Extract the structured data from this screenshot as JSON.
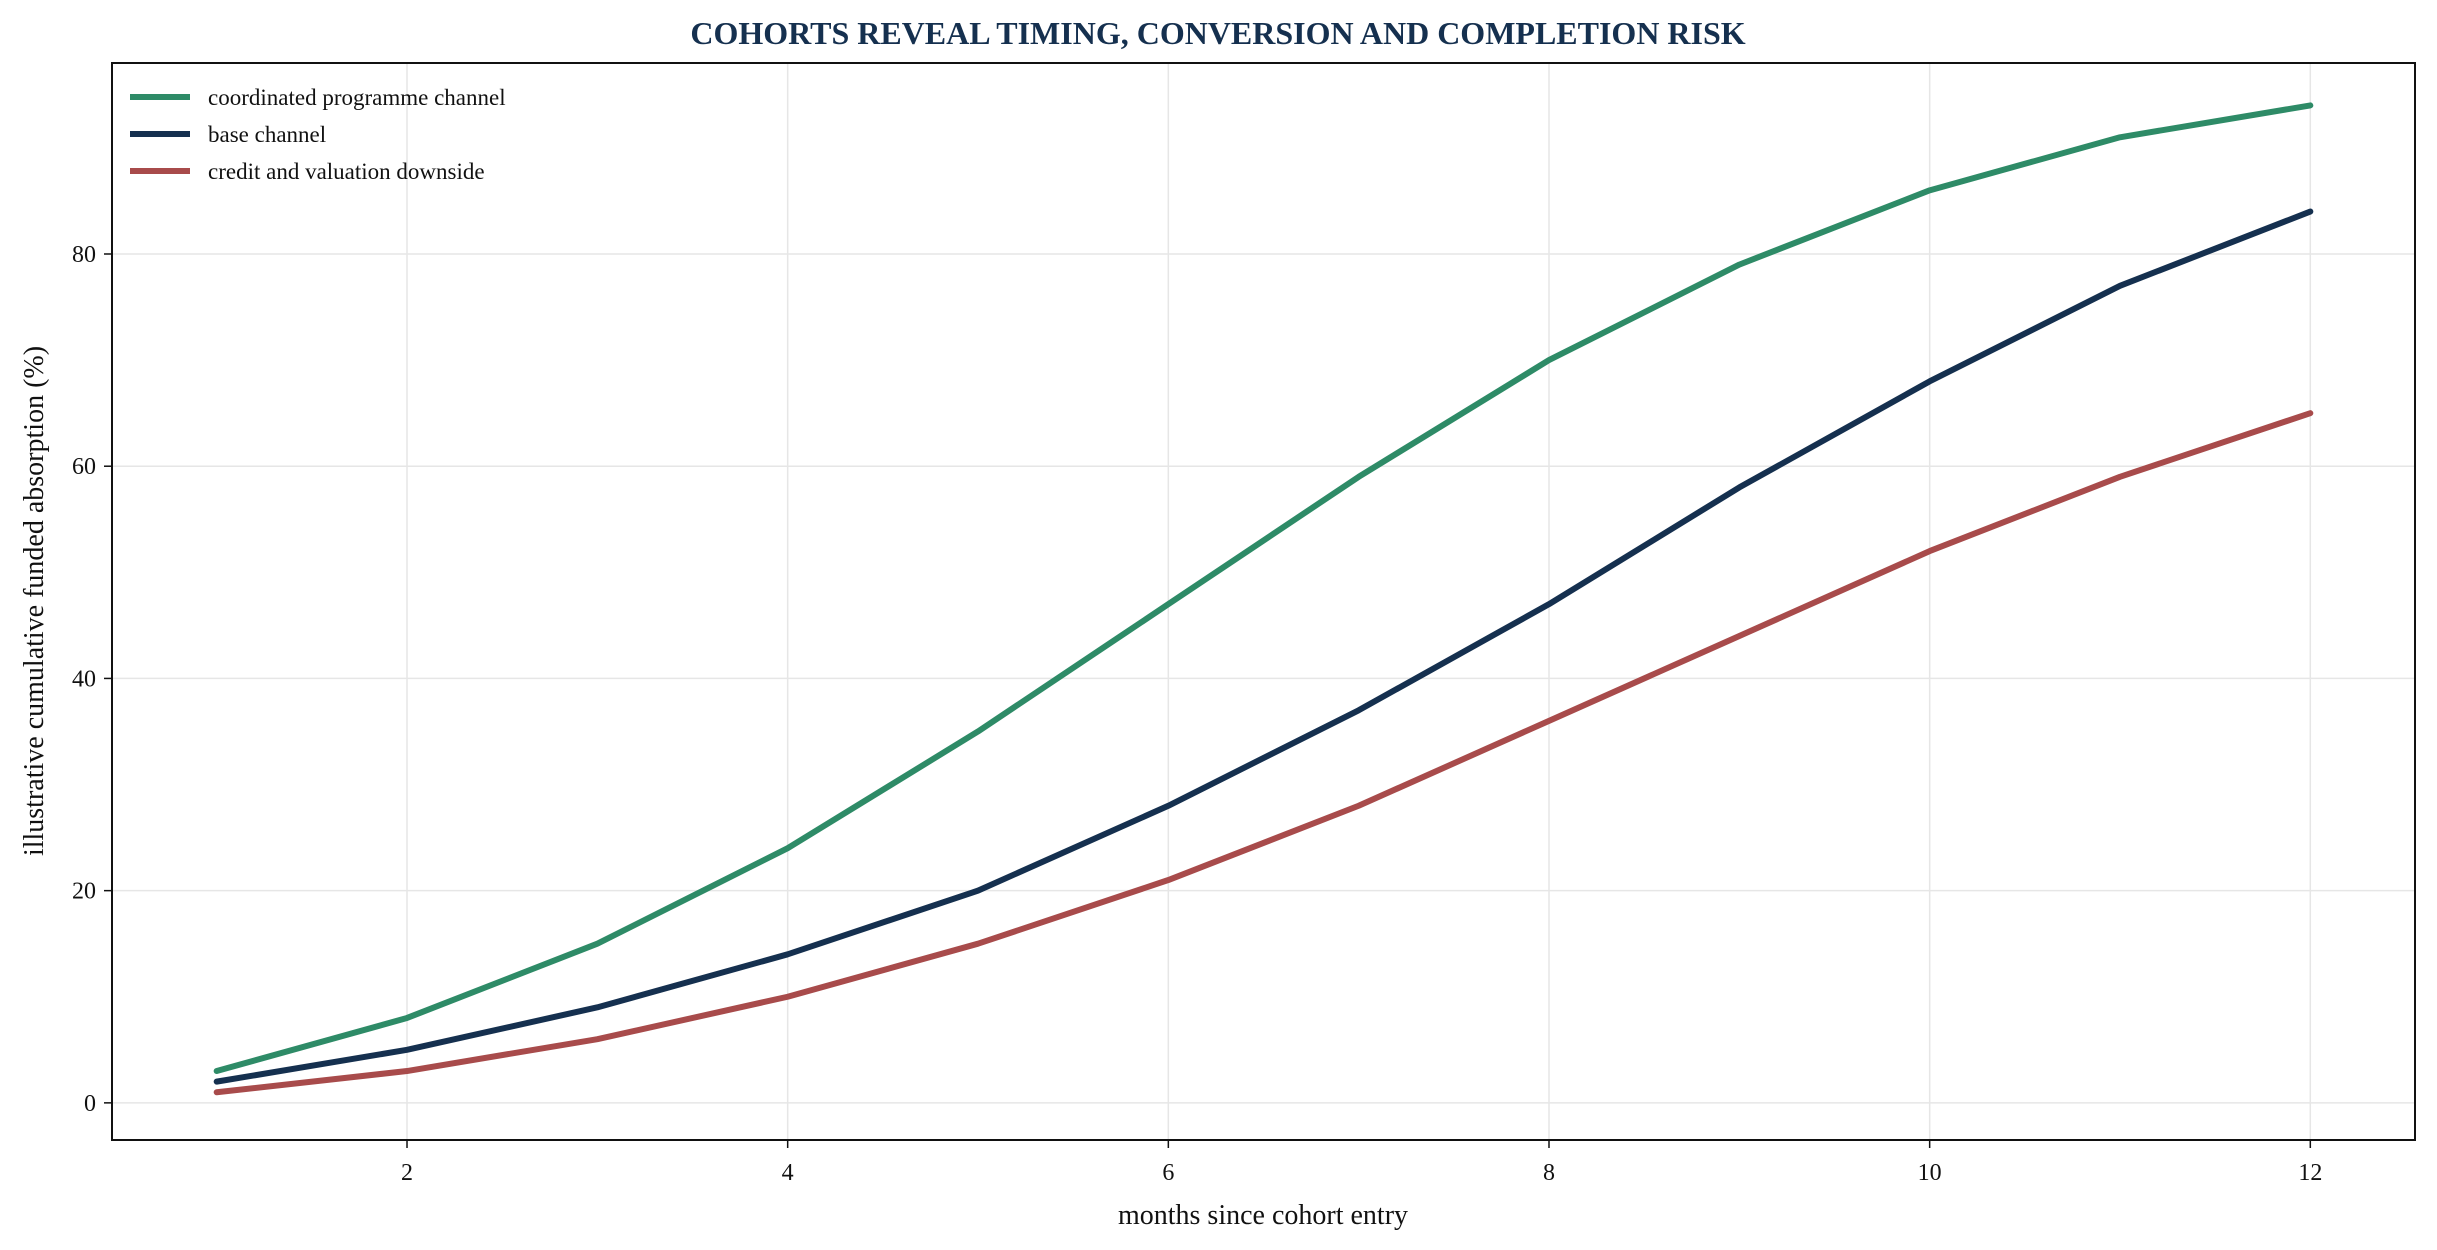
{
  "chart_data": {
    "type": "line",
    "title": "COHORTS REVEAL TIMING, CONVERSION AND COMPLETION RISK",
    "xlabel": "months since cohort entry",
    "ylabel": "illustrative cumulative funded absorption (%)",
    "x": [
      1,
      2,
      3,
      4,
      5,
      6,
      7,
      8,
      9,
      10,
      11,
      12
    ],
    "xlim": [
      0.45,
      12.55
    ],
    "ylim": [
      -3.5,
      98
    ],
    "xticks": [
      2,
      4,
      6,
      8,
      10,
      12
    ],
    "yticks": [
      0,
      20,
      40,
      60,
      80
    ],
    "grid": true,
    "legend": "top-left",
    "series": [
      {
        "name": "coordinated programme channel",
        "color": "#2e8b67",
        "values": [
          3,
          8,
          15,
          24,
          35,
          47,
          59,
          70,
          79,
          86,
          91,
          94
        ]
      },
      {
        "name": "base channel",
        "color": "#15304f",
        "values": [
          2,
          5,
          9,
          14,
          20,
          28,
          37,
          47,
          58,
          68,
          77,
          84
        ]
      },
      {
        "name": "credit and valuation downside",
        "color": "#a84b4b",
        "values": [
          1,
          3,
          6,
          10,
          15,
          21,
          28,
          36,
          44,
          52,
          59,
          65
        ]
      }
    ]
  }
}
